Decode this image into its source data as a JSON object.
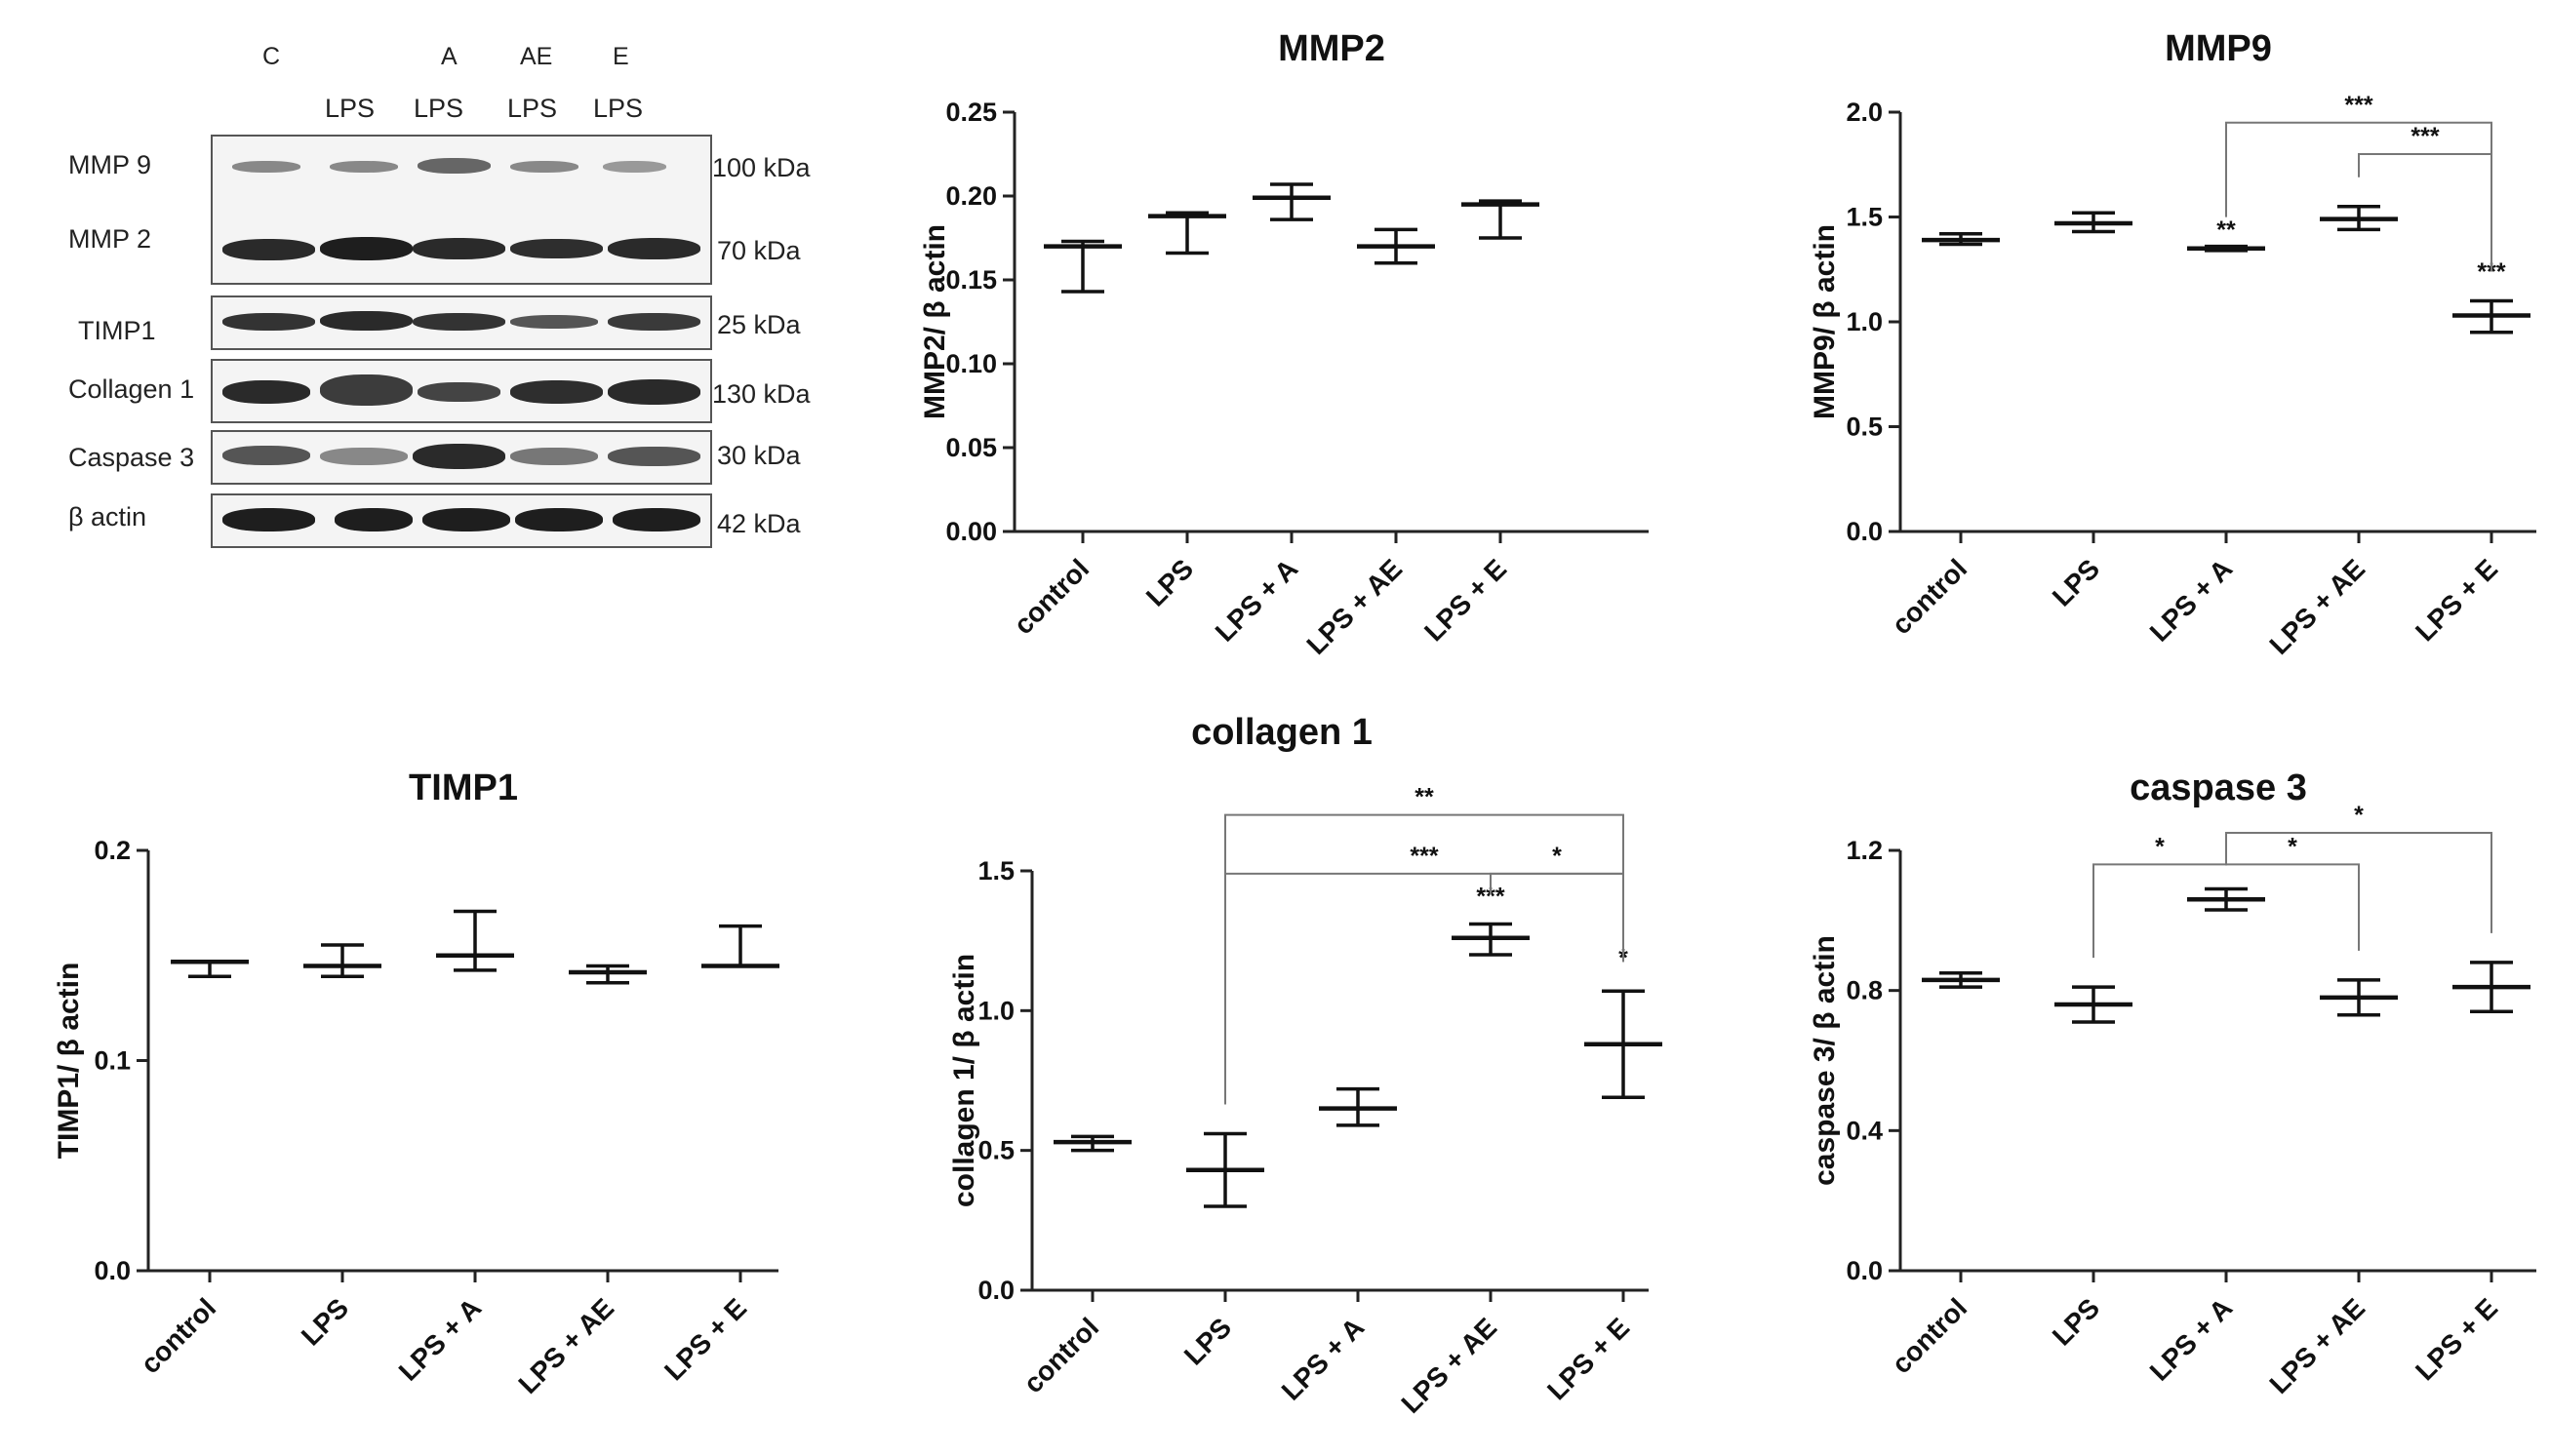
{
  "western_blot": {
    "lane_top_labels": [
      "C",
      "",
      "A",
      "AE",
      "E"
    ],
    "lane_bottom_labels": [
      "",
      "LPS",
      "LPS",
      "LPS",
      "LPS"
    ],
    "panels": [
      {
        "left_labels": [
          "MMP 9",
          "MMP 2"
        ],
        "right_labels": [
          "100 kDa",
          "70 kDa"
        ]
      },
      {
        "left_labels": [
          "TIMP1"
        ],
        "right_labels": [
          "25 kDa"
        ]
      },
      {
        "left_labels": [
          "Collagen 1"
        ],
        "right_labels": [
          "130 kDa"
        ]
      },
      {
        "left_labels": [
          "Caspase 3"
        ],
        "right_labels": [
          "30 kDa"
        ]
      },
      {
        "left_labels": [
          "β actin"
        ],
        "right_labels": [
          "42 kDa"
        ]
      }
    ]
  },
  "chart_data": [
    {
      "type": "scatter",
      "title": "MMP2",
      "ylabel": "MMP2/ β actin",
      "categories": [
        "control",
        "LPS",
        "LPS + A",
        "LPS + AE",
        "LPS + E"
      ],
      "ylim": [
        0,
        0.25
      ],
      "yticks": [
        "0.00",
        "0.05",
        "0.10",
        "0.15",
        "0.20",
        "0.25"
      ],
      "mean": [
        0.17,
        0.188,
        0.199,
        0.17,
        0.195
      ],
      "err_low": [
        0.143,
        0.166,
        0.186,
        0.16,
        0.175
      ],
      "err_high": [
        0.173,
        0.19,
        0.207,
        0.18,
        0.197
      ],
      "annotations": [],
      "brackets": []
    },
    {
      "type": "scatter",
      "title": "MMP9",
      "ylabel": "MMP9/ β actin",
      "categories": [
        "control",
        "LPS",
        "LPS + A",
        "LPS + AE",
        "LPS + E"
      ],
      "ylim": [
        0,
        2.0
      ],
      "yticks": [
        "0.0",
        "0.5",
        "1.0",
        "1.5",
        "2.0"
      ],
      "mean": [
        1.39,
        1.47,
        1.35,
        1.49,
        1.03
      ],
      "err_low": [
        1.37,
        1.43,
        1.34,
        1.44,
        0.95
      ],
      "err_high": [
        1.42,
        1.52,
        1.36,
        1.55,
        1.1
      ],
      "annotations": [
        {
          "cat": 2,
          "y": 1.4,
          "label": "**"
        },
        {
          "cat": 4,
          "y": 1.2,
          "label": "***"
        }
      ],
      "brackets": [
        {
          "from": 2,
          "to": 4,
          "y": 1.95,
          "label": "***"
        },
        {
          "from": 3,
          "to": 4,
          "y": 1.8,
          "label": "***"
        }
      ]
    },
    {
      "type": "scatter",
      "title": "TIMP1",
      "ylabel": "TIMP1/ β actin",
      "categories": [
        "control",
        "LPS",
        "LPS + A",
        "LPS + AE",
        "LPS + E"
      ],
      "ylim": [
        0,
        0.2
      ],
      "yticks": [
        "0.0",
        "0.1",
        "0.2"
      ],
      "mean": [
        0.147,
        0.145,
        0.15,
        0.142,
        0.145
      ],
      "err_low": [
        0.14,
        0.14,
        0.143,
        0.137,
        0.145
      ],
      "err_high": [
        0.147,
        0.155,
        0.171,
        0.145,
        0.164
      ],
      "annotations": [],
      "brackets": []
    },
    {
      "type": "scatter",
      "title": "collagen 1",
      "ylabel": "collagen 1/ β actin",
      "categories": [
        "control",
        "LPS",
        "LPS + A",
        "LPS + AE",
        "LPS + E"
      ],
      "ylim": [
        0,
        1.5
      ],
      "yticks": [
        "0.0",
        "0.5",
        "1.0",
        "1.5"
      ],
      "mean": [
        0.53,
        0.43,
        0.65,
        1.26,
        0.88
      ],
      "err_low": [
        0.5,
        0.3,
        0.59,
        1.2,
        0.69
      ],
      "err_high": [
        0.55,
        0.56,
        0.72,
        1.31,
        1.07
      ],
      "annotations": [
        {
          "cat": 3,
          "y": 1.38,
          "label": "***"
        },
        {
          "cat": 4,
          "y": 1.16,
          "label": "*"
        }
      ],
      "brackets": [
        {
          "from": 1,
          "to": 4,
          "y": 1.7,
          "label": "**"
        },
        {
          "from": 1,
          "to": 4,
          "y": 1.49,
          "label": "***"
        },
        {
          "from": 3,
          "to": 4,
          "y": 1.49,
          "label": "*"
        }
      ]
    },
    {
      "type": "scatter",
      "title": "caspase 3",
      "ylabel": "caspase 3/ β actin",
      "categories": [
        "control",
        "LPS",
        "LPS + A",
        "LPS + AE",
        "LPS + E"
      ],
      "ylim": [
        0,
        1.2
      ],
      "yticks": [
        "0.0",
        "0.4",
        "0.8",
        "1.2"
      ],
      "mean": [
        0.83,
        0.76,
        1.06,
        0.78,
        0.81
      ],
      "err_low": [
        0.81,
        0.71,
        1.03,
        0.73,
        0.74
      ],
      "err_high": [
        0.85,
        0.81,
        1.09,
        0.83,
        0.88
      ],
      "annotations": [],
      "brackets": [
        {
          "from": 1,
          "to": 2,
          "y": 1.16,
          "label": "*"
        },
        {
          "from": 2,
          "to": 3,
          "y": 1.16,
          "label": "*"
        },
        {
          "from": 2,
          "to": 4,
          "y": 1.25,
          "label": "*"
        }
      ]
    }
  ]
}
